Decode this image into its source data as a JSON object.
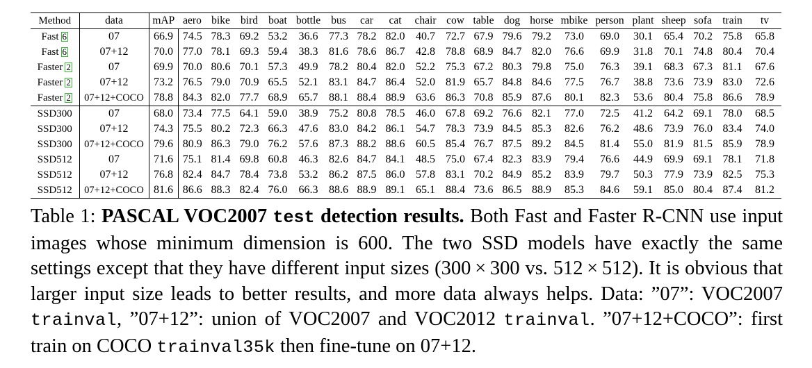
{
  "table": {
    "columns": [
      "Method",
      "data",
      "mAP",
      "aero",
      "bike",
      "bird",
      "boat",
      "bottle",
      "bus",
      "car",
      "cat",
      "chair",
      "cow",
      "table",
      "dog",
      "horse",
      "mbike",
      "person",
      "plant",
      "sheep",
      "sofa",
      "train",
      "tv"
    ],
    "rows": [
      {
        "method": "Fast",
        "ref": "6",
        "data": "07",
        "values": [
          "66.9",
          "74.5",
          "78.3",
          "69.2",
          "53.2",
          "36.6",
          "77.3",
          "78.2",
          "82.0",
          "40.7",
          "72.7",
          "67.9",
          "79.6",
          "79.2",
          "73.0",
          "69.0",
          "30.1",
          "65.4",
          "70.2",
          "75.8",
          "65.8"
        ],
        "bold": []
      },
      {
        "method": "Fast",
        "ref": "6",
        "data": "07+12",
        "values": [
          "70.0",
          "77.0",
          "78.1",
          "69.3",
          "59.4",
          "38.3",
          "81.6",
          "78.6",
          "86.7",
          "42.8",
          "78.8",
          "68.9",
          "84.7",
          "82.0",
          "76.6",
          "69.9",
          "31.8",
          "70.1",
          "74.8",
          "80.4",
          "70.4"
        ],
        "bold": []
      },
      {
        "method": "Faster",
        "ref": "2",
        "data": "07",
        "values": [
          "69.9",
          "70.0",
          "80.6",
          "70.1",
          "57.3",
          "49.9",
          "78.2",
          "80.4",
          "82.0",
          "52.2",
          "75.3",
          "67.2",
          "80.3",
          "79.8",
          "75.0",
          "76.3",
          "39.1",
          "68.3",
          "67.3",
          "81.1",
          "67.6"
        ],
        "bold": []
      },
      {
        "method": "Faster",
        "ref": "2",
        "data": "07+12",
        "values": [
          "73.2",
          "76.5",
          "79.0",
          "70.9",
          "65.5",
          "52.1",
          "83.1",
          "84.7",
          "86.4",
          "52.0",
          "81.9",
          "65.7",
          "84.8",
          "84.6",
          "77.5",
          "76.7",
          "38.8",
          "73.6",
          "73.9",
          "83.0",
          "72.6"
        ],
        "bold": []
      },
      {
        "method": "Faster",
        "ref": "2",
        "data": "07+12+COCO",
        "values": [
          "78.8",
          "84.3",
          "82.0",
          "77.7",
          "68.9",
          "65.7",
          "88.1",
          "88.4",
          "88.9",
          "63.6",
          "86.3",
          "70.8",
          "85.9",
          "87.6",
          "80.1",
          "82.3",
          "53.6",
          "80.4",
          "75.8",
          "86.6",
          "78.9"
        ],
        "bold": []
      },
      {
        "method": "SSD300",
        "ref": "",
        "data": "07",
        "values": [
          "68.0",
          "73.4",
          "77.5",
          "64.1",
          "59.0",
          "38.9",
          "75.2",
          "80.8",
          "78.5",
          "46.0",
          "67.8",
          "69.2",
          "76.6",
          "82.1",
          "77.0",
          "72.5",
          "41.2",
          "64.2",
          "69.1",
          "78.0",
          "68.5"
        ],
        "bold": []
      },
      {
        "method": "SSD300",
        "ref": "",
        "data": "07+12",
        "values": [
          "74.3",
          "75.5",
          "80.2",
          "72.3",
          "66.3",
          "47.6",
          "83.0",
          "84.2",
          "86.1",
          "54.7",
          "78.3",
          "73.9",
          "84.5",
          "85.3",
          "82.6",
          "76.2",
          "48.6",
          "73.9",
          "76.0",
          "83.4",
          "74.0"
        ],
        "bold": []
      },
      {
        "method": "SSD300",
        "ref": "",
        "data": "07+12+COCO",
        "values": [
          "79.6",
          "80.9",
          "86.3",
          "79.0",
          "76.2",
          "57.6",
          "87.3",
          "88.2",
          "88.6",
          "60.5",
          "85.4",
          "76.7",
          "87.5",
          "89.2",
          "84.5",
          "81.4",
          "55.0",
          "81.9",
          "81.5",
          "85.9",
          "78.9"
        ],
        "bold": [
          4,
          11,
          12,
          13,
          18
        ]
      },
      {
        "method": "SSD512",
        "ref": "",
        "data": "07",
        "values": [
          "71.6",
          "75.1",
          "81.4",
          "69.8",
          "60.8",
          "46.3",
          "82.6",
          "84.7",
          "84.1",
          "48.5",
          "75.0",
          "67.4",
          "82.3",
          "83.9",
          "79.4",
          "76.6",
          "44.9",
          "69.9",
          "69.1",
          "78.1",
          "71.8"
        ],
        "bold": []
      },
      {
        "method": "SSD512",
        "ref": "",
        "data": "07+12",
        "values": [
          "76.8",
          "82.4",
          "84.7",
          "78.4",
          "73.8",
          "53.2",
          "86.2",
          "87.5",
          "86.0",
          "57.8",
          "83.1",
          "70.2",
          "84.9",
          "85.2",
          "83.9",
          "79.7",
          "50.3",
          "77.9",
          "73.9",
          "82.5",
          "75.3"
        ],
        "bold": []
      },
      {
        "method": "SSD512",
        "ref": "",
        "data": "07+12+COCO",
        "values": [
          "81.6",
          "86.6",
          "88.3",
          "82.4",
          "76.0",
          "66.3",
          "88.6",
          "88.9",
          "89.1",
          "65.1",
          "88.4",
          "73.6",
          "86.5",
          "88.9",
          "85.3",
          "84.6",
          "59.1",
          "85.0",
          "80.4",
          "87.4",
          "81.2"
        ],
        "bold": [
          0,
          1,
          2,
          3,
          5,
          6,
          7,
          8,
          9,
          10,
          14,
          15,
          16,
          17,
          19,
          20
        ]
      }
    ]
  },
  "caption": {
    "label": "Table 1: ",
    "title_a": "PASCAL VOC2007 ",
    "title_mono": "test",
    "title_b": " detection results.",
    "body_1": " Both Fast and Faster R-CNN use input images whose minimum dimension is 600. The two SSD models have exactly the same settings except that they have different input sizes (300 × 300 vs. 512 × 512). It is obvious that larger input size leads to better results, and more data always helps. Data: ”07”: VOC2007 ",
    "mono_1": "trainval",
    "body_2": ", ”07+12”: union of VOC2007 and VOC2012 ",
    "mono_2": "trainval",
    "body_3": ". ”07+12+COCO”: first train on COCO ",
    "mono_3": "trainval35k",
    "body_4": " then fine-tune on 07+12."
  }
}
